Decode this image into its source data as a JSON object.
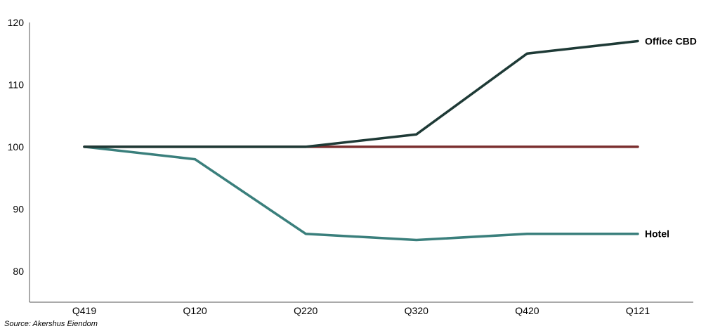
{
  "chart_data": {
    "type": "line",
    "title": "",
    "xlabel": "",
    "ylabel": "",
    "categories": [
      "Q419",
      "Q120",
      "Q220",
      "Q320",
      "Q420",
      "Q121"
    ],
    "ylim": [
      75,
      120
    ],
    "yticks": [
      80,
      90,
      100,
      110,
      120
    ],
    "grid": false,
    "series": [
      {
        "name": "Office CBD",
        "color": "#1e3a36",
        "values": [
          100,
          100,
          100,
          102,
          115,
          117
        ]
      },
      {
        "name": "",
        "color": "#7a2e2e",
        "values": [
          100,
          100,
          100,
          100,
          100,
          100
        ]
      },
      {
        "name": "Hotel",
        "color": "#3a7f7c",
        "values": [
          100,
          98,
          86,
          85,
          86,
          86
        ]
      }
    ]
  },
  "source": "Source: Akershus Eiendom"
}
